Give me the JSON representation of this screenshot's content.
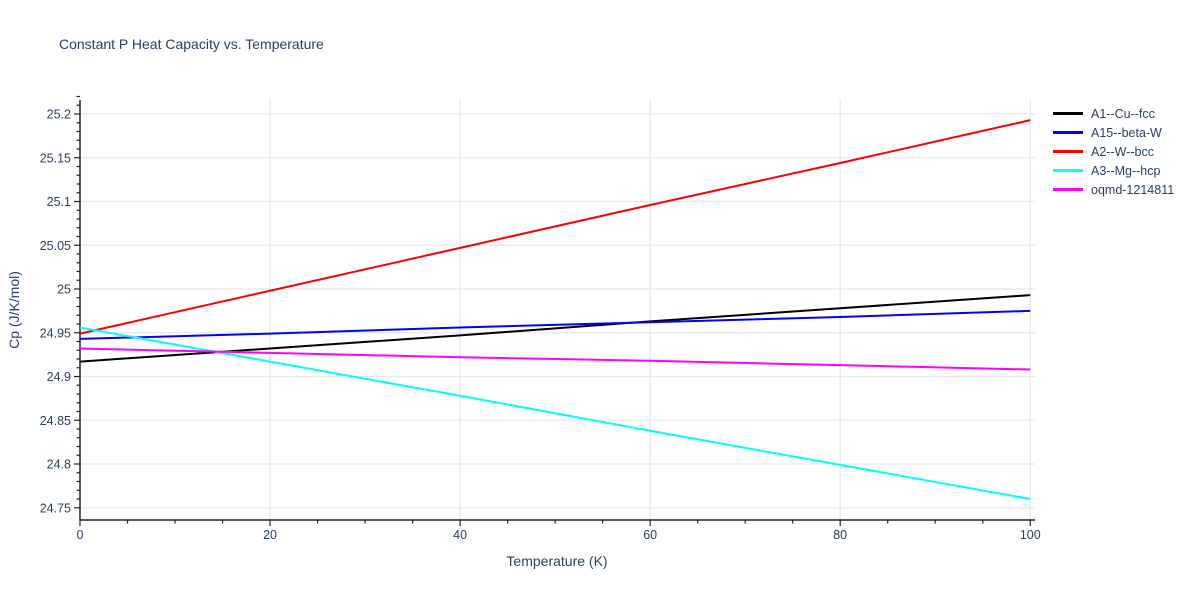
{
  "title": "Constant P Heat Capacity vs. Temperature",
  "chart_data": {
    "type": "line",
    "title": "Constant P Heat Capacity vs. Temperature",
    "xlabel": "Temperature (K)",
    "ylabel": "Cp (J/K/mol)",
    "x": [
      0,
      20,
      40,
      60,
      80,
      100
    ],
    "series": [
      {
        "name": "A1--Cu--fcc",
        "color": "#000000",
        "values": [
          24.917,
          24.932,
          24.947,
          24.963,
          24.978,
          24.993
        ]
      },
      {
        "name": "A15--beta-W",
        "color": "#0000ff",
        "values": [
          24.943,
          24.949,
          24.956,
          24.962,
          24.968,
          24.975
        ]
      },
      {
        "name": "A2--W--bcc",
        "color": "#ff0000",
        "values": [
          24.949,
          24.998,
          25.047,
          25.096,
          25.144,
          25.193
        ]
      },
      {
        "name": "A3--Mg--hcp",
        "color": "#00ffff",
        "values": [
          24.956,
          24.917,
          24.878,
          24.838,
          24.799,
          24.76
        ]
      },
      {
        "name": "oqmd-1214811",
        "color": "#ff00ff",
        "values": [
          24.932,
          24.927,
          24.922,
          24.918,
          24.913,
          24.908
        ]
      }
    ],
    "xlim": [
      0,
      100.5
    ],
    "ylim": [
      24.736,
      25.216
    ],
    "xticks": [
      0,
      20,
      40,
      60,
      80,
      100
    ],
    "xtick_labels": [
      "0",
      "20",
      "40",
      "60",
      "80",
      "100"
    ],
    "yticks": [
      24.75,
      24.8,
      24.85,
      24.9,
      24.95,
      25,
      25.05,
      25.1,
      25.15,
      25.2
    ],
    "ytick_labels": [
      "24.75",
      "24.8",
      "24.85",
      "24.9",
      "24.95",
      "25",
      "25.05",
      "25.1",
      "25.15",
      "25.2"
    ],
    "minor_x_step": 5,
    "minor_y_step": 0.01,
    "grid": true,
    "legend_position": "top-right-outside"
  },
  "colors": {
    "text": "#2a3f5f",
    "grid": "#e8e8e8",
    "axis": "#222222",
    "background": "#ffffff"
  }
}
